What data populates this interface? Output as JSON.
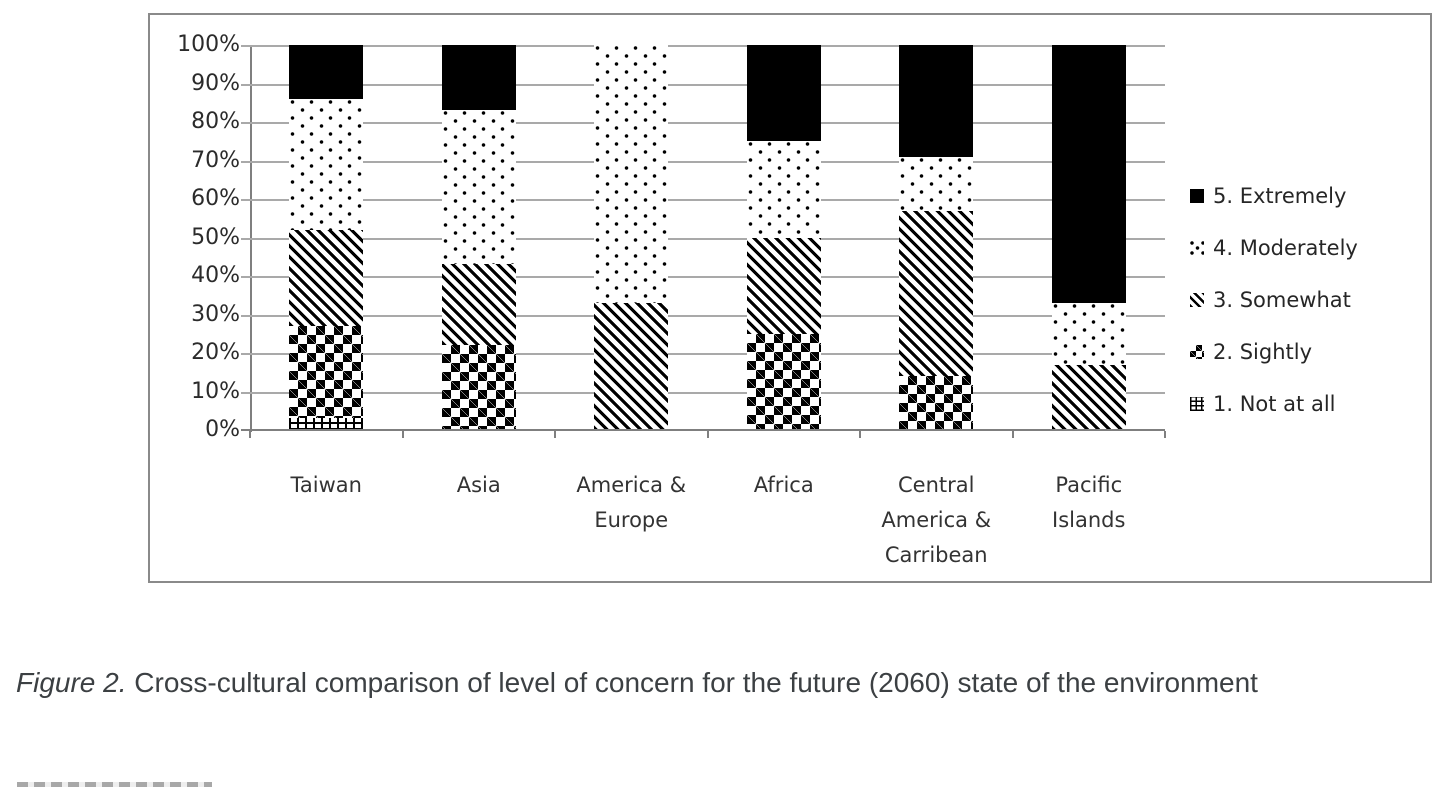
{
  "colors": {
    "bar_fill": "#000000",
    "background": "#ffffff",
    "gridline": "#a9a9a9",
    "axis": "#7f7f7f",
    "frame_border": "#8a8a8a",
    "caption_text": "#3c4043"
  },
  "caption": {
    "label": "Figure 2.",
    "text": " Cross-cultural comparison of level of concern for the future (2060) state of the environment"
  },
  "chart_data": {
    "type": "bar",
    "stacked": true,
    "stacked_unit": "%",
    "title": "",
    "xlabel": "",
    "ylabel": "",
    "ylim": [
      0,
      100
    ],
    "grid": true,
    "legend_position": "right",
    "y_ticks": [
      "100%",
      "90%",
      "80%",
      "70%",
      "60%",
      "50%",
      "40%",
      "30%",
      "20%",
      "10%",
      "0%"
    ],
    "categories": [
      "Taiwan",
      "Asia",
      "America & Europe",
      "Africa",
      "Central America & Carribean",
      "Pacific Islands"
    ],
    "series": [
      {
        "name": "1. Not at all",
        "pattern": "hash",
        "values": [
          3,
          0,
          0,
          0,
          0,
          0
        ]
      },
      {
        "name": "2. Sightly",
        "pattern": "diamonds",
        "values": [
          24,
          22,
          0,
          25,
          14,
          0
        ]
      },
      {
        "name": "3. Somewhat",
        "pattern": "stripes",
        "values": [
          25,
          21,
          33,
          25,
          43,
          17
        ]
      },
      {
        "name": "4. Moderately",
        "pattern": "dots",
        "values": [
          34,
          40,
          67,
          25,
          14,
          16
        ]
      },
      {
        "name": "5. Extremely",
        "pattern": "solid",
        "values": [
          14,
          17,
          0,
          25,
          29,
          67
        ]
      }
    ]
  }
}
